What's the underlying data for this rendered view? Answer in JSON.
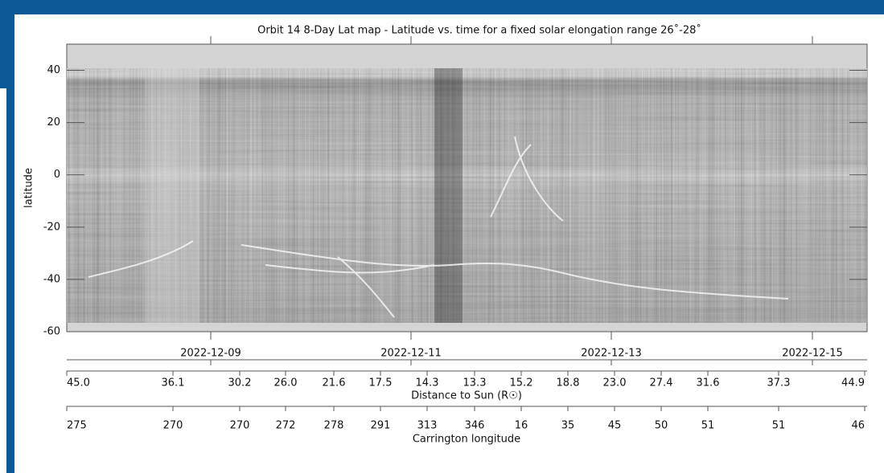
{
  "chart_data": {
    "type": "image",
    "title": "Orbit 14 8-Day Lat map - Latitude vs. time for a fixed solar elongation range 26˚-28˚",
    "y_label": "latitude",
    "ylim": [
      -60,
      50
    ],
    "yticks": [
      -60,
      -40,
      -20,
      0,
      20,
      40
    ],
    "date_ticks": [
      "2022-12-09",
      "2022-12-11",
      "2022-12-13",
      "2022-12-15"
    ],
    "distance_label": "Distance to Sun (R☉)",
    "distance_ticks": [
      "45.0",
      "36.1",
      "30.2",
      "26.0",
      "21.6",
      "17.5",
      "14.3",
      "13.3",
      "15.2",
      "18.8",
      "23.0",
      "27.4",
      "31.6",
      "37.3",
      "44.9"
    ],
    "carrington_label": "Carrington longitude",
    "carrington_ticks": [
      "275",
      "270",
      "270",
      "272",
      "278",
      "291",
      "313",
      "346",
      "16",
      "35",
      "45",
      "50",
      "51",
      "51",
      "46"
    ]
  }
}
